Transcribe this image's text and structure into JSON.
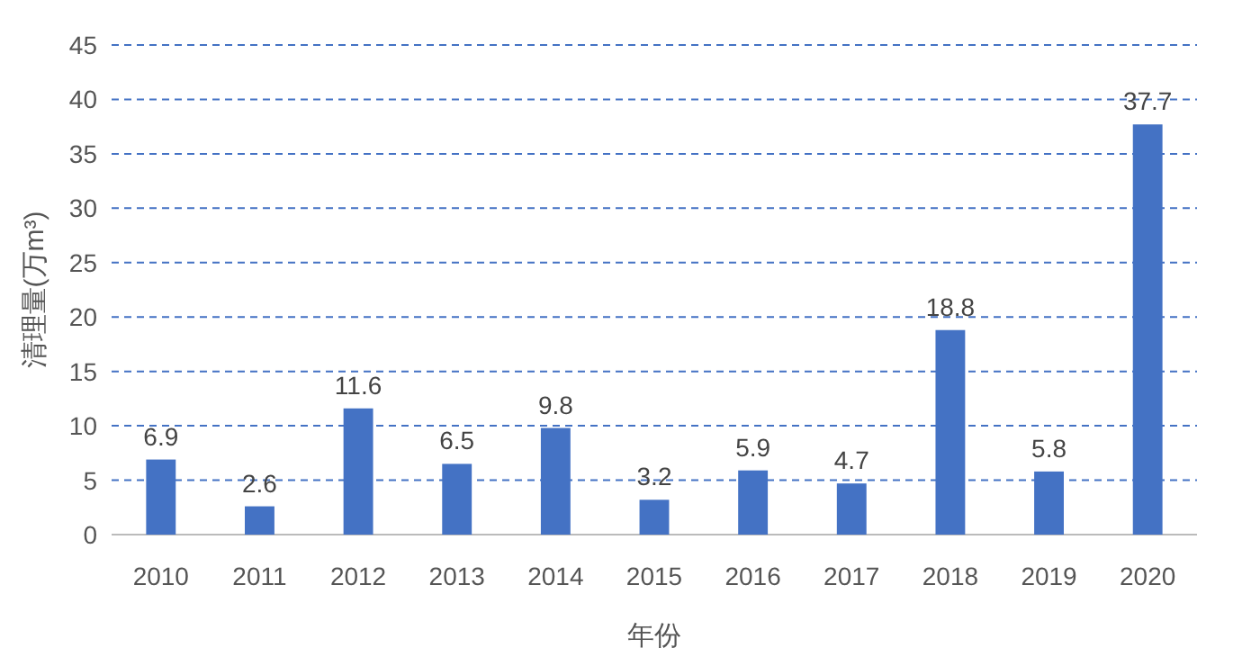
{
  "chart_data": {
    "type": "bar",
    "xlabel": "年份",
    "ylabel": "清理量(万m³)",
    "categories": [
      "2010",
      "2011",
      "2012",
      "2013",
      "2014",
      "2015",
      "2016",
      "2017",
      "2018",
      "2019",
      "2020"
    ],
    "values": [
      6.9,
      2.6,
      11.6,
      6.5,
      9.8,
      3.2,
      5.9,
      4.7,
      18.8,
      5.8,
      37.7
    ],
    "color": "#4472c4",
    "ylim": [
      0,
      45
    ],
    "yticks": [
      0,
      5,
      10,
      15,
      20,
      25,
      30,
      35,
      40,
      45
    ],
    "grid": "y",
    "data_labels": true
  }
}
